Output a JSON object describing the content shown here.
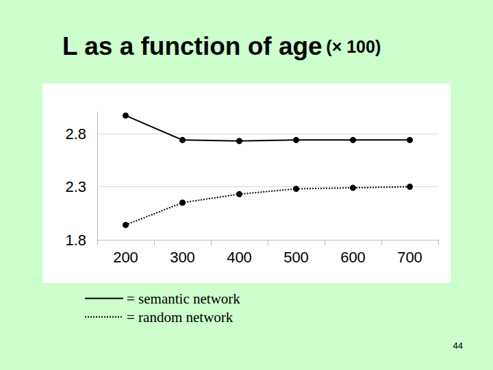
{
  "chart_data": {
    "type": "line",
    "title": "L as a function of age",
    "subtitle": "(× 100)",
    "annotations": [
      "44"
    ],
    "categories": [
      "200",
      "300",
      "400",
      "500",
      "600",
      "700"
    ],
    "series": [
      {
        "name": "= semantic network",
        "color": "#000000",
        "line_style": "solid",
        "marker": "circle",
        "values": [
          2.97,
          2.74,
          2.73,
          2.74,
          2.74,
          2.74
        ]
      },
      {
        "name": "= random network",
        "color": "#000000",
        "line_style": "dotted",
        "marker": "circle",
        "values": [
          1.94,
          2.15,
          2.23,
          2.28,
          2.29,
          2.3
        ]
      }
    ],
    "ylim": [
      1.8,
      3.0
    ],
    "yticks": [
      1.8,
      2.3,
      2.8
    ],
    "grid": true,
    "legend": "bottom-left"
  }
}
